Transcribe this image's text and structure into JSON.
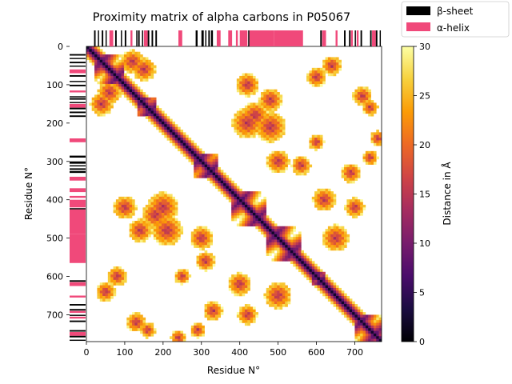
{
  "chart_data": {
    "type": "heatmap",
    "title": "Proximity matrix of alpha carbons in P05067",
    "xlabel": "Residue N°",
    "ylabel": "Residue N°",
    "n_residues": 770,
    "xlim": [
      0,
      770
    ],
    "ylim": [
      770,
      0
    ],
    "x_ticks": [
      0,
      100,
      200,
      300,
      400,
      500,
      600,
      700
    ],
    "y_ticks": [
      0,
      100,
      200,
      300,
      400,
      500,
      600,
      700
    ],
    "colorbar": {
      "label": "Distance in Å",
      "range": [
        0,
        30
      ],
      "ticks": [
        0,
        5,
        10,
        15,
        20,
        25,
        30
      ],
      "colormap": "inferno",
      "stops": [
        "#000004",
        "#1b0c41",
        "#4a0c6b",
        "#781c6d",
        "#a52c60",
        "#cf4446",
        "#ed6925",
        "#fb9b06",
        "#f7d13d",
        "#fcffa4"
      ]
    },
    "legend": {
      "placement": "top-right",
      "entries": [
        {
          "label": "β-sheet",
          "color": "#000000"
        },
        {
          "label": "α-helix",
          "color": "#f0497a"
        }
      ]
    },
    "secondary_structure": {
      "beta_sheet": [
        [
          20,
          24
        ],
        [
          30,
          33
        ],
        [
          40,
          44
        ],
        [
          50,
          53
        ],
        [
          75,
          79
        ],
        [
          90,
          93
        ],
        [
          100,
          104
        ],
        [
          130,
          133
        ],
        [
          135,
          139
        ],
        [
          145,
          148
        ],
        [
          160,
          164
        ],
        [
          170,
          174
        ],
        [
          180,
          184
        ],
        [
          285,
          290
        ],
        [
          300,
          306
        ],
        [
          310,
          313
        ],
        [
          318,
          322
        ],
        [
          325,
          330
        ],
        [
          422,
          425
        ],
        [
          610,
          614
        ],
        [
          672,
          676
        ],
        [
          685,
          689
        ],
        [
          700,
          703
        ],
        [
          715,
          719
        ],
        [
          740,
          744
        ],
        [
          755,
          759
        ],
        [
          765,
          768
        ]
      ],
      "alpha_helix": [
        [
          60,
          70
        ],
        [
          115,
          120
        ],
        [
          150,
          160
        ],
        [
          240,
          250
        ],
        [
          340,
          350
        ],
        [
          370,
          380
        ],
        [
          390,
          395
        ],
        [
          400,
          420
        ],
        [
          425,
          490
        ],
        [
          490,
          565
        ],
        [
          615,
          625
        ],
        [
          650,
          655
        ],
        [
          690,
          695
        ],
        [
          705,
          710
        ],
        [
          745,
          755
        ]
      ]
    }
  }
}
